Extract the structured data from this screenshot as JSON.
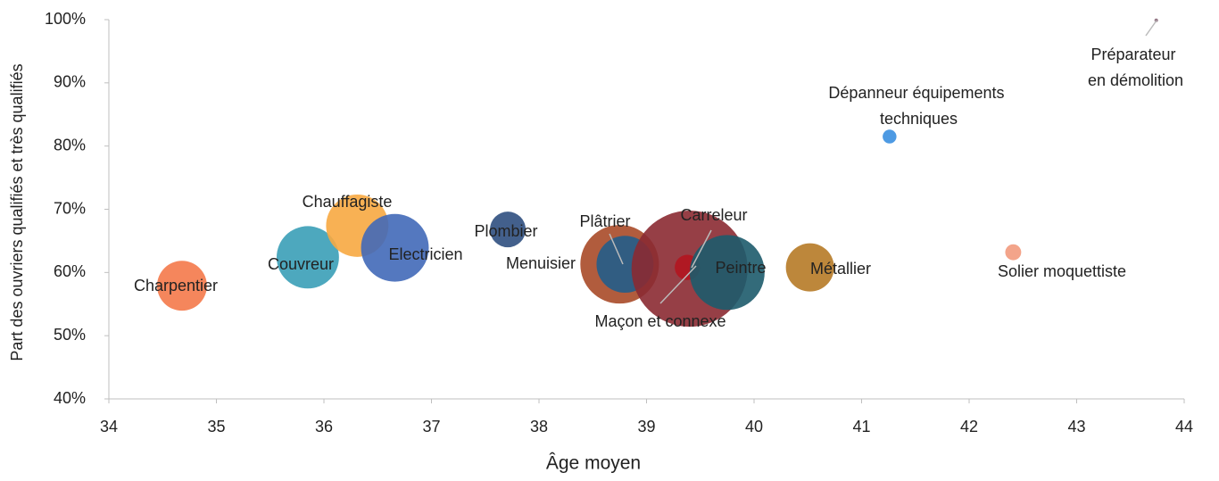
{
  "chart_data": {
    "type": "bubble",
    "xlabel": "Âge moyen",
    "ylabel": "Part des ouvriers qualifiés et très qualifiés",
    "xlim": [
      34,
      44
    ],
    "xticks": [
      34,
      35,
      36,
      37,
      38,
      39,
      40,
      41,
      42,
      43,
      44
    ],
    "ylim": [
      40,
      100
    ],
    "yticks": [
      {
        "value": 40,
        "label": "40%"
      },
      {
        "value": 50,
        "label": "50%"
      },
      {
        "value": 60,
        "label": "60%"
      },
      {
        "value": 70,
        "label": "70%"
      },
      {
        "value": 80,
        "label": "80%"
      },
      {
        "value": 90,
        "label": "90%"
      },
      {
        "value": 100,
        "label": "100%"
      }
    ],
    "series": [
      {
        "name": "Charpentier",
        "color": "#f4794a",
        "x": [
          34.68
        ],
        "values": [
          57.9
        ],
        "sizes": [
          78
        ]
      },
      {
        "name": "Couvreur",
        "color": "#3a9fb7",
        "x": [
          35.85
        ],
        "values": [
          62.4
        ],
        "sizes": [
          122
        ]
      },
      {
        "name": "Chauffagiste",
        "color": "#f7a941",
        "x": [
          36.31
        ],
        "values": [
          67.4
        ],
        "sizes": [
          122
        ]
      },
      {
        "name": "Electricien",
        "color": "#4169b8",
        "x": [
          36.66
        ],
        "values": [
          63.9
        ],
        "sizes": [
          144
        ]
      },
      {
        "name": "Plombier",
        "color": "#2f4f7f",
        "x": [
          37.71
        ],
        "values": [
          66.8
        ],
        "sizes": [
          40
        ]
      },
      {
        "name": "Plâtrier",
        "color": "#a94a28",
        "x": [
          38.75
        ],
        "values": [
          61.3
        ],
        "sizes": [
          194
        ]
      },
      {
        "name": "Menuisier",
        "color": "#245d8a",
        "x": [
          38.8
        ],
        "values": [
          61.3
        ],
        "sizes": [
          102
        ]
      },
      {
        "name": "Maçon et connexe",
        "color": "#8b2a32",
        "x": [
          39.4
        ],
        "values": [
          60.6
        ],
        "sizes": [
          423
        ]
      },
      {
        "name": "Carreleur",
        "color": "#b2151f",
        "x": [
          39.38
        ],
        "values": [
          60.8
        ],
        "sizes": [
          20
        ]
      },
      {
        "name": "Peintre",
        "color": "#1d5b6b",
        "x": [
          39.75
        ],
        "values": [
          60.0
        ],
        "sizes": [
          176
        ]
      },
      {
        "name": "Métallier",
        "color": "#b67a26",
        "x": [
          40.52
        ],
        "values": [
          60.8
        ],
        "sizes": [
          73
        ]
      },
      {
        "name": "Dépanneur équipements techniques",
        "color": "#3a8fe0",
        "x": [
          41.26
        ],
        "values": [
          81.5
        ],
        "sizes": [
          6
        ]
      },
      {
        "name": "Solier moquettiste",
        "color": "#f29a7d",
        "x": [
          42.41
        ],
        "values": [
          63.2
        ],
        "sizes": [
          8
        ]
      },
      {
        "name": "Préparateur en démolition",
        "color": "#8a6a7a",
        "x": [
          43.74
        ],
        "values": [
          99.9
        ],
        "sizes": [
          0.4
        ]
      }
    ]
  }
}
